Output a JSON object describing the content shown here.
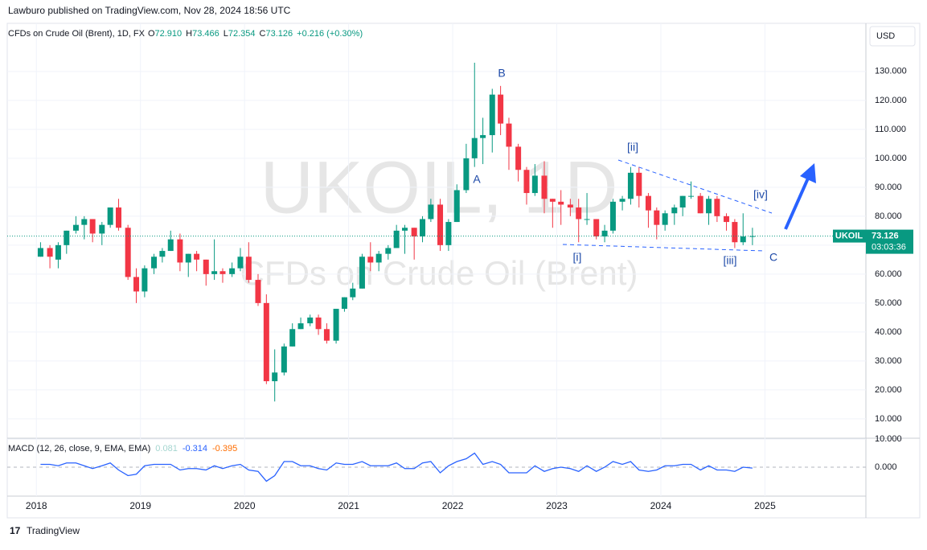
{
  "header": {
    "publisher": "Lawburo published on TradingView.com, Nov 28, 2024 18:56 UTC",
    "symbol": "CFDs on Crude Oil (Brent), 1D, FX",
    "ohlc": [
      {
        "key": "O",
        "value": "72.910"
      },
      {
        "key": "H",
        "value": "73.466"
      },
      {
        "key": "L",
        "value": "72.354"
      },
      {
        "key": "C",
        "value": "73.126"
      }
    ],
    "change": "+0.216 (+0.30%)",
    "currency": "USD",
    "watermark": "UKOIL, 1D",
    "watermark_sub": "CFDs on Crude Oil (Brent)",
    "ticker": "UKOIL",
    "countdown": "03:03:36",
    "footer": "TradingView"
  },
  "chart_data": [
    {
      "type": "candlestick",
      "up_color": "#089981",
      "down_color": "#f23645",
      "x": [
        2018.04,
        2018.13,
        2018.21,
        2018.29,
        2018.38,
        2018.46,
        2018.54,
        2018.63,
        2018.71,
        2018.79,
        2018.88,
        2018.96,
        2019.04,
        2019.13,
        2019.21,
        2019.29,
        2019.38,
        2019.46,
        2019.54,
        2019.63,
        2019.71,
        2019.79,
        2019.88,
        2019.96,
        2020.04,
        2020.13,
        2020.21,
        2020.29,
        2020.38,
        2020.46,
        2020.54,
        2020.63,
        2020.71,
        2020.79,
        2020.88,
        2020.96,
        2021.04,
        2021.13,
        2021.21,
        2021.29,
        2021.38,
        2021.46,
        2021.54,
        2021.63,
        2021.71,
        2021.79,
        2021.88,
        2021.96,
        2022.04,
        2022.13,
        2022.21,
        2022.29,
        2022.38,
        2022.46,
        2022.54,
        2022.63,
        2022.71,
        2022.79,
        2022.88,
        2022.96,
        2023.04,
        2023.13,
        2023.21,
        2023.29,
        2023.38,
        2023.46,
        2023.54,
        2023.63,
        2023.71,
        2023.79,
        2023.88,
        2023.96,
        2024.04,
        2024.13,
        2024.21,
        2024.29,
        2024.38,
        2024.46,
        2024.54,
        2024.63,
        2024.71,
        2024.79,
        2024.88
      ],
      "open": [
        66,
        69,
        65,
        70,
        75,
        77,
        79,
        74,
        77,
        83,
        76,
        59,
        54,
        62,
        66,
        68,
        72,
        64,
        67,
        65,
        60,
        61,
        60,
        62,
        66,
        58,
        50,
        23,
        26,
        35,
        41,
        43,
        45,
        41,
        37,
        48,
        52,
        55,
        66,
        64,
        67,
        69,
        75,
        76,
        73,
        79,
        84,
        70,
        78,
        89,
        100,
        107,
        108,
        122,
        112,
        104,
        96,
        88,
        94,
        86,
        85,
        84,
        83,
        79,
        79,
        73,
        75,
        85,
        86,
        95,
        87,
        82,
        77,
        81,
        83,
        87,
        87,
        81,
        86,
        80,
        78,
        71,
        73
      ],
      "high": [
        71,
        70,
        71,
        75,
        80,
        80,
        79,
        78,
        83,
        86,
        77,
        62,
        63,
        67,
        69,
        75,
        74,
        67,
        68,
        65,
        72,
        62,
        64,
        69,
        71,
        60,
        53,
        34,
        36,
        43,
        45,
        46,
        46,
        43,
        48,
        52,
        57,
        67,
        71,
        68,
        70,
        77,
        77,
        76,
        80,
        86,
        86,
        79,
        91,
        105,
        133,
        114,
        124,
        125,
        114,
        105,
        97,
        98,
        99,
        86,
        89,
        86,
        86,
        88,
        79,
        77,
        86,
        87,
        97,
        97,
        88,
        83,
        82,
        84,
        87,
        92,
        88,
        87,
        87,
        81,
        79,
        81,
        76
      ],
      "low": [
        66,
        62,
        62,
        67,
        74,
        72,
        71,
        70,
        76,
        75,
        58,
        50,
        52,
        60,
        64,
        68,
        61,
        59,
        61,
        56,
        58,
        57,
        59,
        61,
        57,
        49,
        22,
        16,
        25,
        35,
        41,
        42,
        39,
        36,
        36,
        47,
        51,
        55,
        61,
        61,
        65,
        69,
        67,
        65,
        71,
        78,
        68,
        68,
        78,
        88,
        97,
        98,
        102,
        108,
        96,
        92,
        84,
        87,
        81,
        76,
        77,
        80,
        71,
        77,
        72,
        71,
        74,
        82,
        84,
        83,
        76,
        72,
        75,
        77,
        80,
        86,
        81,
        77,
        78,
        75,
        69,
        70,
        70
      ],
      "close": [
        69,
        66,
        70,
        75,
        77,
        79,
        74,
        77,
        83,
        76,
        59,
        54,
        62,
        66,
        68,
        72,
        64,
        67,
        65,
        60,
        61,
        60,
        62,
        66,
        58,
        50,
        23,
        26,
        35,
        41,
        43,
        45,
        41,
        37,
        48,
        52,
        55,
        66,
        64,
        67,
        69,
        75,
        76,
        73,
        79,
        84,
        70,
        78,
        89,
        100,
        107,
        108,
        122,
        112,
        104,
        96,
        88,
        94,
        86,
        85,
        84,
        83,
        79,
        79,
        73,
        75,
        85,
        86,
        95,
        87,
        82,
        77,
        81,
        83,
        87,
        87,
        81,
        86,
        80,
        78,
        71,
        73,
        73.126
      ],
      "xlim": [
        2017.72,
        2025.97
      ],
      "xticks": [
        2018,
        2019,
        2020,
        2021,
        2022,
        2023,
        2024,
        2025
      ],
      "ylim": [
        3.3,
        139.4
      ],
      "yticks": [
        {
          "value": 10,
          "label": "10.000"
        },
        {
          "value": 20,
          "label": "20.000"
        },
        {
          "value": 30,
          "label": "30.000"
        },
        {
          "value": 40,
          "label": "40.000"
        },
        {
          "value": 50,
          "label": "50.000"
        },
        {
          "value": 60,
          "label": "60.000"
        },
        {
          "value": 70,
          "label": "70.000"
        },
        {
          "value": 80,
          "label": "80.000"
        },
        {
          "value": 90,
          "label": "90.000"
        },
        {
          "value": 100,
          "label": "100.000"
        },
        {
          "value": 110,
          "label": "110.000"
        },
        {
          "value": 120,
          "label": "120.000"
        },
        {
          "value": 130,
          "label": "130.000"
        }
      ],
      "grid": true,
      "annotations": [
        "A",
        "B",
        "[ii]",
        "[iv]",
        "[i]",
        "[iii]",
        "C"
      ]
    },
    {
      "type": "line",
      "title": "MACD (12, 26, close, 9, EMA, EMA)",
      "readings": [
        "0.081",
        "-0.314",
        "-0.395"
      ],
      "series": [
        {
          "name": "MACD",
          "color": "#2962ff",
          "values": [
            1,
            1,
            0.5,
            1.5,
            1.5,
            0.5,
            -0.5,
            0.5,
            1.5,
            -1,
            -3,
            -2.5,
            0.5,
            1,
            1,
            1,
            -1,
            -0.5,
            -0.5,
            -1,
            0.5,
            -0.5,
            0.5,
            1,
            -1,
            -1.5,
            -5,
            -3,
            2,
            2,
            0.5,
            0.5,
            -0.5,
            -1,
            1.5,
            1,
            1,
            2,
            0.5,
            0.5,
            0.5,
            1.5,
            -0.5,
            -0.5,
            1.5,
            2,
            -2,
            0.5,
            2,
            3,
            5,
            1,
            2,
            1,
            -2,
            -2,
            -2,
            0.5,
            -1.5,
            -0.5,
            0,
            -0.5,
            -1.5,
            0.5,
            -1.5,
            0,
            2,
            1,
            2,
            -1,
            -1.5,
            -1,
            0.5,
            0.5,
            1,
            1,
            -1,
            0.5,
            -1,
            -1,
            -1.5,
            0,
            -0.314
          ]
        }
      ],
      "ylim": [
        -10.3,
        10.3
      ],
      "yticks": [
        {
          "value": 0,
          "label": "0.000"
        },
        {
          "value": 10,
          "label": "10.000"
        }
      ]
    }
  ]
}
